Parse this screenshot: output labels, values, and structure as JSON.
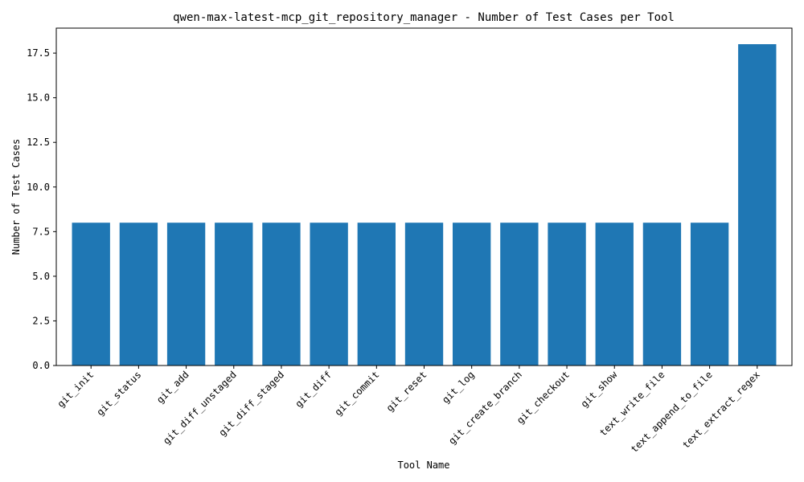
{
  "chart_data": {
    "type": "bar",
    "title": "qwen-max-latest-mcp_git_repository_manager - Number of Test Cases per Tool",
    "xlabel": "Tool Name",
    "ylabel": "Number of Test Cases",
    "categories": [
      "git_init",
      "git_status",
      "git_add",
      "git_diff_unstaged",
      "git_diff_staged",
      "git_diff",
      "git_commit",
      "git_reset",
      "git_log",
      "git_create_branch",
      "git_checkout",
      "git_show",
      "text_write_file",
      "text_append_to_file",
      "text_extract_regex"
    ],
    "values": [
      8,
      8,
      8,
      8,
      8,
      8,
      8,
      8,
      8,
      8,
      8,
      8,
      8,
      8,
      18
    ],
    "ylim": [
      0,
      18.9
    ],
    "yticks": [
      0,
      2.5,
      5,
      7.5,
      10,
      12.5,
      15,
      17.5
    ],
    "ytick_labels": [
      "0.0",
      "2.5",
      "5.0",
      "7.5",
      "10.0",
      "12.5",
      "15.0",
      "17.5"
    ],
    "bar_color": "#1f77b4",
    "grid": false,
    "legend": "none"
  }
}
